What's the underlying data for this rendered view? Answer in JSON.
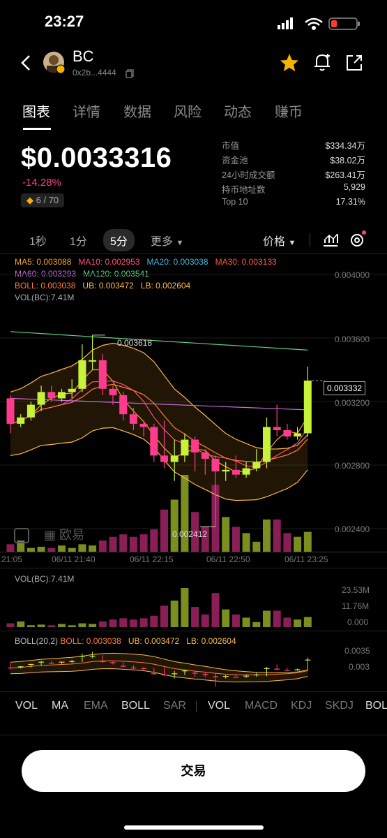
{
  "status": {
    "time": "23:27"
  },
  "token": {
    "name": "BC",
    "address": "0x2b...4444"
  },
  "tabs": [
    "图表",
    "详情",
    "数据",
    "风险",
    "动态",
    "赚币"
  ],
  "price": {
    "value": "$0.0033316",
    "change": "-14.28%",
    "rank": "6 / 70"
  },
  "stats": [
    {
      "label": "市值",
      "value": "$334.34万"
    },
    {
      "label": "资金池",
      "value": "$38.02万"
    },
    {
      "label": "24小时成交额",
      "value": "$263.41万"
    },
    {
      "label": "持币地址数",
      "value": "5,929"
    },
    {
      "label": "Top 10",
      "value": "17.31%"
    }
  ],
  "timeframes": [
    "1秒",
    "1分",
    "5分",
    "更多"
  ],
  "price_dropdown": "价格",
  "ma_lines": {
    "ma5": "MA5: 0.003088",
    "ma10": "MA10: 0.002953",
    "ma20": "MA20: 0.003038",
    "ma30": "MA30: 0.003133",
    "ma60": "MA60: 0.003293",
    "ma120": "MA120: 0.003541",
    "boll": "BOLL: 0.003038",
    "ub": "UB: 0.003472",
    "lb": "LB: 0.002604",
    "vol": "VOL(BC):7.41M"
  },
  "price_axis": [
    "0.004000",
    "0.003600",
    "0.003200",
    "0.002800",
    "0.002400"
  ],
  "current_price_tag": "0.003332",
  "high_label": "0.003618",
  "low_label": "0.002412",
  "watermark": "欧易",
  "time_axis": [
    "21:05",
    "06/11 21:40",
    "06/11 22:15",
    "06/11 22:50",
    "06/11 23:25"
  ],
  "vol_panel": {
    "title": "VOL(BC):7.41M",
    "axis": [
      "23.53M",
      "11.76M",
      "0.000"
    ]
  },
  "boll_panel": {
    "title": "BOLL(20,2)",
    "boll": "BOLL: 0.003038",
    "ub": "UB: 0.003472",
    "lb": "LB: 0.002604",
    "axis": [
      "0.0035",
      "0.003"
    ]
  },
  "indicator_tabs": [
    "VOL",
    "MA",
    "EMA",
    "BOLL",
    "SAR",
    "VOL",
    "MACD",
    "KDJ",
    "SKDJ",
    "BOLL"
  ],
  "trade_button": "交易",
  "colors": {
    "up": "#c6f23a",
    "down": "#ff3b8d",
    "accent": "#f5b400"
  },
  "chart_data": {
    "type": "candlestick",
    "y_range": [
      0.00235,
      0.00408
    ],
    "candles": [
      {
        "o": 0.00322,
        "c": 0.00306,
        "h": 0.00324,
        "l": 0.003
      },
      {
        "o": 0.00306,
        "c": 0.0031,
        "h": 0.00312,
        "l": 0.00304
      },
      {
        "o": 0.0031,
        "c": 0.00318,
        "h": 0.0032,
        "l": 0.00308
      },
      {
        "o": 0.00318,
        "c": 0.00326,
        "h": 0.0033,
        "l": 0.00314
      },
      {
        "o": 0.00326,
        "c": 0.00322,
        "h": 0.0033,
        "l": 0.0032
      },
      {
        "o": 0.00322,
        "c": 0.00326,
        "h": 0.00328,
        "l": 0.0032
      },
      {
        "o": 0.00326,
        "c": 0.00328,
        "h": 0.00334,
        "l": 0.00322
      },
      {
        "o": 0.00328,
        "c": 0.00346,
        "h": 0.00356,
        "l": 0.00326
      },
      {
        "o": 0.00346,
        "c": 0.00346,
        "h": 0.003618,
        "l": 0.0034
      },
      {
        "o": 0.00346,
        "c": 0.00328,
        "h": 0.0035,
        "l": 0.00324
      },
      {
        "o": 0.00328,
        "c": 0.00324,
        "h": 0.0033,
        "l": 0.00318
      },
      {
        "o": 0.00324,
        "c": 0.00312,
        "h": 0.00326,
        "l": 0.00308
      },
      {
        "o": 0.00312,
        "c": 0.00306,
        "h": 0.00316,
        "l": 0.00302
      },
      {
        "o": 0.00306,
        "c": 0.00304,
        "h": 0.00308,
        "l": 0.00298
      },
      {
        "o": 0.00304,
        "c": 0.00286,
        "h": 0.00306,
        "l": 0.00282
      },
      {
        "o": 0.00286,
        "c": 0.00282,
        "h": 0.00308,
        "l": 0.00278
      },
      {
        "o": 0.00282,
        "c": 0.00286,
        "h": 0.00296,
        "l": 0.0027
      },
      {
        "o": 0.00286,
        "c": 0.00296,
        "h": 0.003,
        "l": 0.00282
      },
      {
        "o": 0.00296,
        "c": 0.00288,
        "h": 0.00298,
        "l": 0.00276
      },
      {
        "o": 0.00288,
        "c": 0.00284,
        "h": 0.0029,
        "l": 0.00274
      },
      {
        "o": 0.00284,
        "c": 0.00276,
        "h": 0.00286,
        "l": 0.002412
      },
      {
        "o": 0.00276,
        "c": 0.00277,
        "h": 0.00282,
        "l": 0.0027
      },
      {
        "o": 0.00277,
        "c": 0.00274,
        "h": 0.00286,
        "l": 0.00272
      },
      {
        "o": 0.00274,
        "c": 0.00278,
        "h": 0.00282,
        "l": 0.00272
      },
      {
        "o": 0.00278,
        "c": 0.00282,
        "h": 0.0029,
        "l": 0.00276
      },
      {
        "o": 0.00282,
        "c": 0.00304,
        "h": 0.0031,
        "l": 0.00278
      },
      {
        "o": 0.00304,
        "c": 0.00302,
        "h": 0.00318,
        "l": 0.00298
      },
      {
        "o": 0.00302,
        "c": 0.00298,
        "h": 0.00306,
        "l": 0.00296
      },
      {
        "o": 0.00298,
        "c": 0.003,
        "h": 0.00304,
        "l": 0.00296
      },
      {
        "o": 0.003,
        "c": 0.003332,
        "h": 0.00342,
        "l": 0.00298
      }
    ],
    "volumes": [
      0.6,
      0.9,
      0.3,
      0.4,
      0.3,
      0.5,
      0.3,
      0.6,
      0.5,
      0.9,
      1.2,
      1.4,
      1.2,
      1.4,
      1.8,
      3.4,
      4.2,
      6.2,
      3.2,
      2.0,
      5.4,
      2.8,
      2.0,
      1.5,
      0.8,
      2.6,
      2.6,
      1.5,
      1.2,
      1.6
    ]
  }
}
